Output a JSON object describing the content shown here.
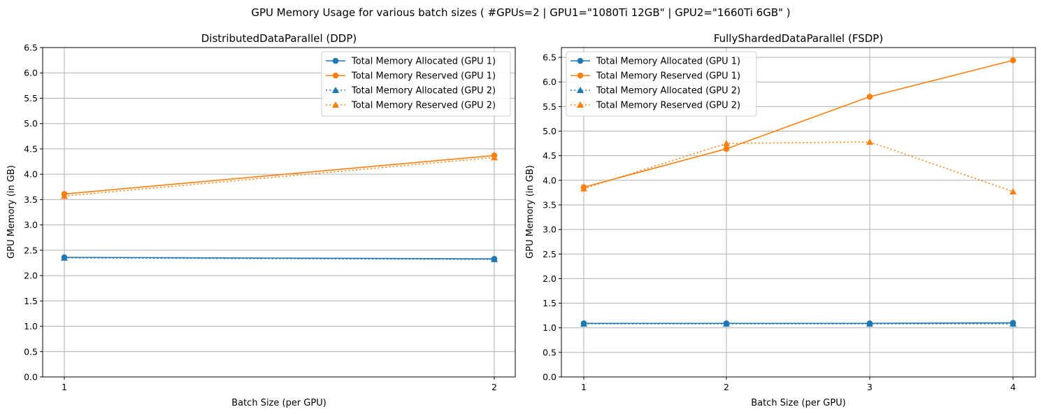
{
  "figure": {
    "suptitle": "GPU Memory Usage for various batch sizes (  #GPUs=2  |  GPU1=\"1080Ti 12GB\"  |  GPU2=\"1660Ti 6GB\"  )"
  },
  "colors": {
    "blue": "#1f77b4",
    "orange": "#ff7f0e",
    "grid": "#b0b0b0"
  },
  "chart_data": [
    {
      "type": "line",
      "title": "DistributedDataParallel (DDP)",
      "xlabel": "Batch Size (per GPU)",
      "ylabel": "GPU Memory (in GB)",
      "x": [
        1,
        2
      ],
      "xticks": [
        "1",
        "2"
      ],
      "ylim": [
        0,
        6.5
      ],
      "yticks": [
        "0.0",
        "0.5",
        "1.0",
        "1.5",
        "2.0",
        "2.5",
        "3.0",
        "3.5",
        "4.0",
        "4.5",
        "5.0",
        "5.5",
        "6.0",
        "6.5"
      ],
      "grid": true,
      "legend_position": "top-right",
      "series": [
        {
          "name": "Total Memory Allocated (GPU 1)",
          "values": [
            2.36,
            2.33
          ],
          "color": "blue",
          "linestyle": "solid",
          "marker": "circle"
        },
        {
          "name": "Total Memory Reserved (GPU 1)",
          "values": [
            3.61,
            4.37
          ],
          "color": "orange",
          "linestyle": "solid",
          "marker": "circle"
        },
        {
          "name": "Total Memory Allocated (GPU 2)",
          "values": [
            2.35,
            2.32
          ],
          "color": "blue",
          "linestyle": "dotted",
          "marker": "triangle"
        },
        {
          "name": "Total Memory Reserved (GPU 2)",
          "values": [
            3.57,
            4.33
          ],
          "color": "orange",
          "linestyle": "dotted",
          "marker": "triangle"
        }
      ]
    },
    {
      "type": "line",
      "title": "FullyShardedDataParallel (FSDP)",
      "xlabel": "Batch Size (per GPU)",
      "ylabel": "GPU Memory (in GB)",
      "x": [
        1,
        2,
        3,
        4
      ],
      "xticks": [
        "1",
        "2",
        "3",
        "4"
      ],
      "ylim": [
        0,
        6.7
      ],
      "yticks": [
        "0.0",
        "0.5",
        "1.0",
        "1.5",
        "2.0",
        "2.5",
        "3.0",
        "3.5",
        "4.0",
        "4.5",
        "5.0",
        "5.5",
        "6.0",
        "6.5"
      ],
      "grid": true,
      "legend_position": "top-left",
      "series": [
        {
          "name": "Total Memory Allocated (GPU 1)",
          "values": [
            1.09,
            1.09,
            1.09,
            1.1
          ],
          "color": "blue",
          "linestyle": "solid",
          "marker": "circle"
        },
        {
          "name": "Total Memory Reserved (GPU 1)",
          "values": [
            3.86,
            4.64,
            5.7,
            6.44
          ],
          "color": "orange",
          "linestyle": "solid",
          "marker": "circle"
        },
        {
          "name": "Total Memory Allocated (GPU 2)",
          "values": [
            1.08,
            1.08,
            1.08,
            1.08
          ],
          "color": "blue",
          "linestyle": "dotted",
          "marker": "triangle"
        },
        {
          "name": "Total Memory Reserved (GPU 2)",
          "values": [
            3.83,
            4.75,
            4.78,
            3.77
          ],
          "color": "orange",
          "linestyle": "dotted",
          "marker": "triangle"
        }
      ]
    }
  ]
}
